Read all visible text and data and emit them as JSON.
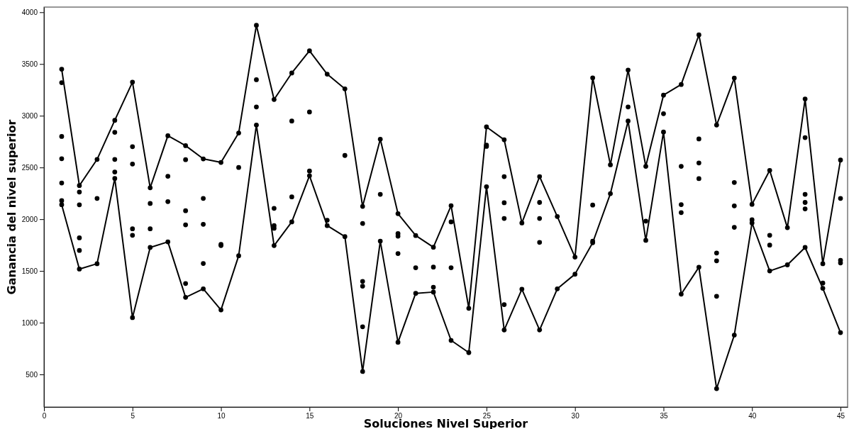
{
  "chart_data": {
    "type": "scatter",
    "xlabel": "Soluciones Nivel Superior",
    "ylabel": "Ganancia del nivel superior",
    "xlim": [
      0,
      45.4
    ],
    "ylim": [
      185,
      4050
    ],
    "xticks": [
      0,
      5,
      10,
      15,
      20,
      25,
      30,
      35,
      40,
      45
    ],
    "yticks": [
      500,
      1000,
      1500,
      2000,
      2500,
      3000,
      3500,
      4000
    ],
    "series": [
      {
        "marker": "circle",
        "color": "#000000",
        "x": [
          1,
          1,
          1,
          1,
          1,
          1,
          1,
          2,
          2,
          2,
          2,
          2,
          2,
          3,
          3,
          3,
          4,
          4,
          4,
          4,
          4,
          5,
          5,
          5,
          5,
          5,
          5,
          6,
          6,
          6,
          6,
          7,
          7,
          7,
          7,
          8,
          8,
          8,
          8,
          8,
          8,
          9,
          9,
          9,
          9,
          9,
          10,
          10,
          10,
          10,
          11,
          11,
          11,
          12,
          12,
          12,
          12,
          13,
          13,
          13,
          13,
          13,
          14,
          14,
          14,
          14,
          15,
          15,
          15,
          15,
          16,
          16,
          16,
          17,
          17,
          17,
          18,
          18,
          18,
          18,
          18,
          18,
          19,
          19,
          19,
          20,
          20,
          20,
          20,
          20,
          21,
          21,
          21,
          22,
          22,
          22,
          22,
          23,
          23,
          23,
          23,
          24,
          24,
          25,
          25,
          25,
          25,
          26,
          26,
          26,
          26,
          26,
          26,
          27,
          27,
          28,
          28,
          28,
          28,
          28,
          29,
          29,
          30,
          30,
          31,
          31,
          31,
          31,
          32,
          32,
          33,
          33,
          33,
          34,
          34,
          34,
          35,
          35,
          35,
          36,
          36,
          36,
          36,
          36,
          37,
          37,
          37,
          37,
          37,
          38,
          38,
          38,
          38,
          38,
          39,
          39,
          39,
          39,
          39,
          40,
          40,
          40,
          41,
          41,
          41,
          41,
          42,
          42,
          43,
          43,
          43,
          43,
          43,
          43,
          44,
          44,
          44,
          45,
          45,
          45,
          45,
          45
        ],
        "values": [
          3450,
          3320,
          2800,
          2585,
          2350,
          2180,
          2140,
          2325,
          2263,
          2139,
          1820,
          1698,
          1518,
          2578,
          2201,
          1570,
          2956,
          2840,
          2578,
          2456,
          2394,
          3325,
          2701,
          2533,
          1907,
          1845,
          1049,
          2304,
          2152,
          1907,
          1727,
          2807,
          2415,
          2170,
          1781,
          2711,
          2575,
          2082,
          1946,
          1379,
          1245,
          2583,
          2201,
          1951,
          1572,
          1327,
          2549,
          1756,
          1745,
          1123,
          2833,
          2500,
          1647,
          3874,
          3348,
          3085,
          2910,
          3157,
          2105,
          1938,
          1912,
          1745,
          3413,
          2949,
          2216,
          1974,
          3627,
          3036,
          2466,
          2420,
          3402,
          1990,
          1938,
          3260,
          2616,
          1832,
          2124,
          1959,
          1399,
          1353,
          961,
          528,
          2773,
          2240,
          1788,
          2054,
          1861,
          1836,
          1668,
          811,
          1842,
          1531,
          1284,
          1729,
          1537,
          1343,
          1296,
          2131,
          1974,
          1531,
          829,
          1139,
          711,
          2892,
          2716,
          2704,
          2314,
          2768,
          2412,
          2159,
          2007,
          1175,
          930,
          1964,
          1324,
          2412,
          2162,
          2007,
          1776,
          930,
          2026,
          1327,
          1634,
          1469,
          3366,
          2137,
          1788,
          1773,
          2526,
          2247,
          3441,
          3085,
          2949,
          2511,
          1982,
          1796,
          3199,
          3020,
          2843,
          3302,
          2511,
          2141,
          2064,
          1276,
          3781,
          2776,
          2544,
          2392,
          1536,
          2910,
          1673,
          1598,
          1255,
          363,
          3364,
          2355,
          2129,
          1922,
          880,
          2144,
          1995,
          1964,
          2472,
          1845,
          1750,
          1500,
          1918,
          1559,
          3162,
          2789,
          2240,
          2162,
          2100,
          1727,
          1570,
          1383,
          1332,
          2572,
          2201,
          1603,
          1577,
          904
        ]
      },
      {
        "type": "line",
        "marker": "none",
        "line_style": "solid",
        "color": "#000000",
        "x": [
          1,
          2,
          3,
          4,
          5,
          6,
          7,
          8,
          9,
          10,
          11,
          12,
          13,
          14,
          15,
          16,
          17,
          18,
          19,
          20,
          21,
          22,
          23,
          24,
          25,
          26,
          27,
          28,
          29,
          30,
          31,
          32,
          33,
          34,
          35,
          36,
          37,
          38,
          39,
          40,
          41,
          42,
          43,
          44,
          45
        ],
        "values": [
          3450,
          2325,
          2578,
          2956,
          3325,
          2304,
          2807,
          2711,
          2583,
          2549,
          2833,
          3874,
          3157,
          3413,
          3627,
          3402,
          3260,
          2124,
          2773,
          2054,
          1842,
          1729,
          2131,
          1139,
          2892,
          2768,
          1964,
          2412,
          2026,
          1634,
          3366,
          2526,
          3441,
          2511,
          3199,
          3302,
          3781,
          2910,
          3364,
          2144,
          2472,
          1918,
          3162,
          1570,
          2572
        ]
      },
      {
        "type": "line",
        "marker": "none",
        "line_style": "solid",
        "color": "#000000",
        "x": [
          1,
          2,
          3,
          4,
          5,
          6,
          7,
          8,
          9,
          10,
          11,
          12,
          13,
          14,
          15,
          16,
          17,
          18,
          19,
          20,
          21,
          22,
          23,
          24,
          25,
          26,
          27,
          28,
          29,
          30,
          31,
          32,
          33,
          34,
          35,
          36,
          37,
          38,
          39,
          40,
          41,
          42,
          43,
          44,
          45
        ],
        "values": [
          2140,
          1518,
          1570,
          2394,
          1049,
          1727,
          1781,
          1245,
          1327,
          1123,
          1647,
          2910,
          1745,
          1974,
          2420,
          1938,
          1832,
          528,
          1788,
          811,
          1284,
          1296,
          829,
          711,
          2314,
          930,
          1324,
          930,
          1327,
          1469,
          1773,
          2247,
          2949,
          1796,
          2843,
          1276,
          1536,
          363,
          880,
          1964,
          1500,
          1559,
          1727,
          1332,
          904
        ]
      }
    ]
  }
}
